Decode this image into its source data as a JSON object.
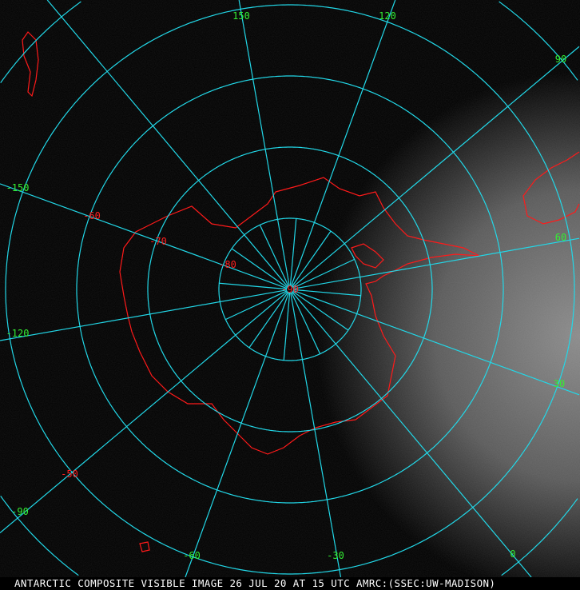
{
  "caption": "ANTARCTIC COMPOSITE VISIBLE IMAGE 26 JUL 20 AT 15 UTC AMRC:(SSEC:UW-MADISON)",
  "projection": "polar-stereographic south",
  "colors": {
    "grid": "#22d8e8",
    "coastline": "#ff1a1a",
    "longitude_labels": "#33ee33",
    "latitude_labels": "#ff2020",
    "background": "#000000"
  },
  "longitude_labels": [
    "150",
    "120",
    "90",
    "60",
    "30",
    "0",
    "-30",
    "-60",
    "-90",
    "-120",
    "-150"
  ],
  "latitude_labels": [
    "-90",
    "-80",
    "-70",
    "-60",
    "-50"
  ]
}
